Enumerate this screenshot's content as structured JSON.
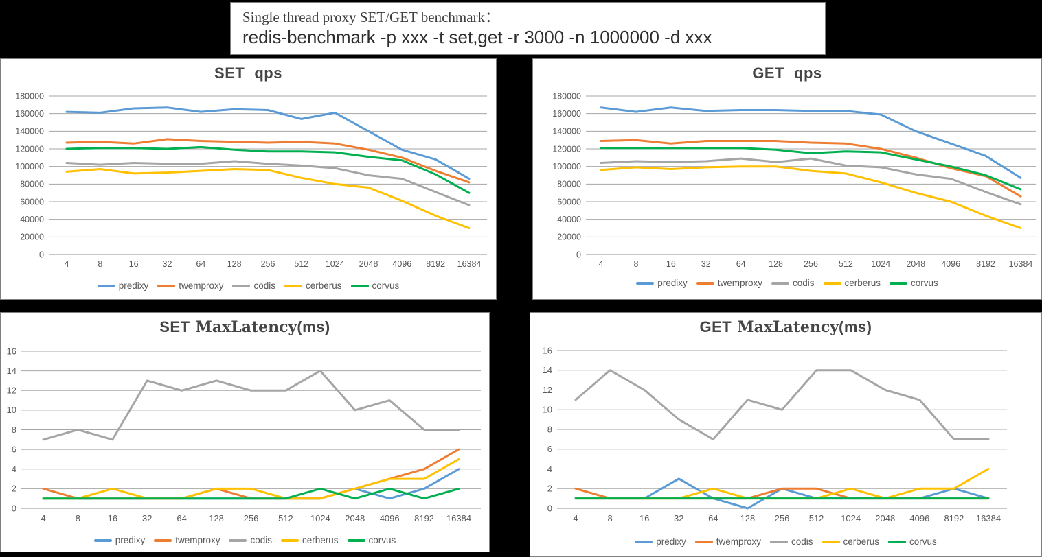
{
  "page": {
    "background": "#000000"
  },
  "title_box": {
    "line1": "Single thread proxy SET/GET benchmark：",
    "line2": "redis-benchmark -p xxx -t set,get -r 3000 -n 1000000 -d xxx"
  },
  "colors": {
    "predixy": "#5B9BD5",
    "twemproxy": "#ED7D31",
    "codis": "#A5A5A5",
    "cerberus": "#FFC000",
    "corvus": "#00B050",
    "gridline": "#A6A6A6",
    "axis_line": "#8C8C8C",
    "tick_text": "#595959",
    "chart_title_text": "#454545"
  },
  "legend_items": [
    "predixy",
    "twemproxy",
    "codis",
    "cerberus",
    "corvus"
  ],
  "chart_data": [
    {
      "id": "set-qps",
      "type": "line",
      "title": "SET  qps",
      "title_parts": {
        "lead": "SET",
        "mid": "",
        "tail": "qps"
      },
      "xlabel": "",
      "ylabel": "",
      "ylim": [
        0,
        180000
      ],
      "ytick_step": 20000,
      "grid": true,
      "legend_position": "bottom",
      "categories": [
        4,
        8,
        16,
        32,
        64,
        128,
        256,
        512,
        1024,
        2048,
        4096,
        8192,
        16384
      ],
      "series": [
        {
          "name": "predixy",
          "color": "#5B9BD5",
          "values": [
            162000,
            161000,
            166000,
            167000,
            162000,
            165000,
            164000,
            154000,
            161000,
            140000,
            119000,
            108000,
            86000
          ]
        },
        {
          "name": "twemproxy",
          "color": "#ED7D31",
          "values": [
            127000,
            128000,
            126000,
            131000,
            129000,
            128000,
            127000,
            128000,
            126000,
            119000,
            110000,
            95000,
            82000
          ]
        },
        {
          "name": "codis",
          "color": "#A5A5A5",
          "values": [
            104000,
            102000,
            104000,
            103000,
            103000,
            106000,
            103000,
            101000,
            98000,
            90000,
            86000,
            71000,
            56000
          ]
        },
        {
          "name": "cerberus",
          "color": "#FFC000",
          "values": [
            94000,
            97000,
            92000,
            93000,
            95000,
            97000,
            96000,
            87000,
            80000,
            76000,
            61000,
            44000,
            30000
          ]
        },
        {
          "name": "corvus",
          "color": "#00B050",
          "values": [
            120000,
            121000,
            121000,
            120000,
            122000,
            119000,
            117000,
            117000,
            116000,
            111000,
            107000,
            91000,
            70000
          ]
        }
      ]
    },
    {
      "id": "get-qps",
      "type": "line",
      "title": "GET  qps",
      "title_parts": {
        "lead": "GET",
        "mid": "",
        "tail": "qps"
      },
      "xlabel": "",
      "ylabel": "",
      "ylim": [
        0,
        180000
      ],
      "ytick_step": 20000,
      "grid": true,
      "legend_position": "bottom",
      "categories": [
        4,
        8,
        16,
        32,
        64,
        128,
        256,
        512,
        1024,
        2048,
        4096,
        8192,
        16384
      ],
      "series": [
        {
          "name": "predixy",
          "color": "#5B9BD5",
          "values": [
            167000,
            162000,
            167000,
            163000,
            164000,
            164000,
            163000,
            163000,
            159000,
            140000,
            126000,
            112000,
            87000
          ]
        },
        {
          "name": "twemproxy",
          "color": "#ED7D31",
          "values": [
            129000,
            130000,
            126000,
            129000,
            129000,
            129000,
            127000,
            126000,
            120000,
            110000,
            98000,
            89000,
            66000
          ]
        },
        {
          "name": "codis",
          "color": "#A5A5A5",
          "values": [
            104000,
            106000,
            105000,
            106000,
            109000,
            105000,
            109000,
            101000,
            99000,
            91000,
            86000,
            71000,
            57000
          ]
        },
        {
          "name": "cerberus",
          "color": "#FFC000",
          "values": [
            96000,
            99000,
            97000,
            99000,
            100000,
            100000,
            95000,
            92000,
            82000,
            70000,
            60000,
            44000,
            30000
          ]
        },
        {
          "name": "corvus",
          "color": "#00B050",
          "values": [
            121000,
            121000,
            121000,
            121000,
            121000,
            119000,
            115000,
            117000,
            116000,
            108000,
            100000,
            90000,
            74000
          ]
        }
      ]
    },
    {
      "id": "set-maxlatency",
      "type": "line",
      "title": "SET MaxLatency(ms)",
      "title_parts": {
        "lead": "SET",
        "mid": "MaxLatency",
        "tail": "(ms)"
      },
      "xlabel": "",
      "ylabel": "",
      "ylim": [
        0,
        16
      ],
      "ytick_step": 2,
      "grid": true,
      "legend_position": "bottom",
      "categories": [
        4,
        8,
        16,
        32,
        64,
        128,
        256,
        512,
        1024,
        2048,
        4096,
        8192,
        16384
      ],
      "series": [
        {
          "name": "predixy",
          "color": "#5B9BD5",
          "values": [
            1,
            1,
            1,
            1,
            1,
            1,
            1,
            1,
            1,
            2,
            1,
            2,
            4
          ]
        },
        {
          "name": "twemproxy",
          "color": "#ED7D31",
          "values": [
            2,
            1,
            1,
            1,
            1,
            2,
            1,
            1,
            1,
            2,
            3,
            4,
            6
          ]
        },
        {
          "name": "codis",
          "color": "#A5A5A5",
          "values": [
            7,
            8,
            7,
            13,
            12,
            13,
            12,
            12,
            14,
            10,
            11,
            8,
            8
          ]
        },
        {
          "name": "cerberus",
          "color": "#FFC000",
          "values": [
            1,
            1,
            2,
            1,
            1,
            2,
            2,
            1,
            1,
            2,
            3,
            3,
            5
          ]
        },
        {
          "name": "corvus",
          "color": "#00B050",
          "values": [
            1,
            1,
            1,
            1,
            1,
            1,
            1,
            1,
            2,
            1,
            2,
            1,
            2
          ]
        }
      ]
    },
    {
      "id": "get-maxlatency",
      "type": "line",
      "title": "GET MaxLatency(ms)",
      "title_parts": {
        "lead": "GET",
        "mid": "MaxLatency",
        "tail": "(ms)"
      },
      "xlabel": "",
      "ylabel": "",
      "ylim": [
        0,
        16
      ],
      "ytick_step": 2,
      "grid": true,
      "legend_position": "bottom",
      "categories": [
        4,
        8,
        16,
        32,
        64,
        128,
        256,
        512,
        1024,
        2048,
        4096,
        8192,
        16384
      ],
      "series": [
        {
          "name": "predixy",
          "color": "#5B9BD5",
          "values": [
            1,
            1,
            1,
            3,
            1,
            0,
            2,
            1,
            1,
            1,
            1,
            2,
            1
          ]
        },
        {
          "name": "twemproxy",
          "color": "#ED7D31",
          "values": [
            2,
            1,
            1,
            1,
            1,
            1,
            2,
            2,
            1,
            1,
            1,
            1,
            1
          ]
        },
        {
          "name": "codis",
          "color": "#A5A5A5",
          "values": [
            11,
            14,
            12,
            9,
            7,
            11,
            10,
            14,
            14,
            12,
            11,
            7,
            7
          ]
        },
        {
          "name": "cerberus",
          "color": "#FFC000",
          "values": [
            1,
            1,
            1,
            1,
            2,
            1,
            1,
            1,
            2,
            1,
            2,
            2,
            4
          ]
        },
        {
          "name": "corvus",
          "color": "#00B050",
          "values": [
            1,
            1,
            1,
            1,
            1,
            1,
            1,
            1,
            1,
            1,
            1,
            1,
            1
          ]
        }
      ]
    }
  ]
}
